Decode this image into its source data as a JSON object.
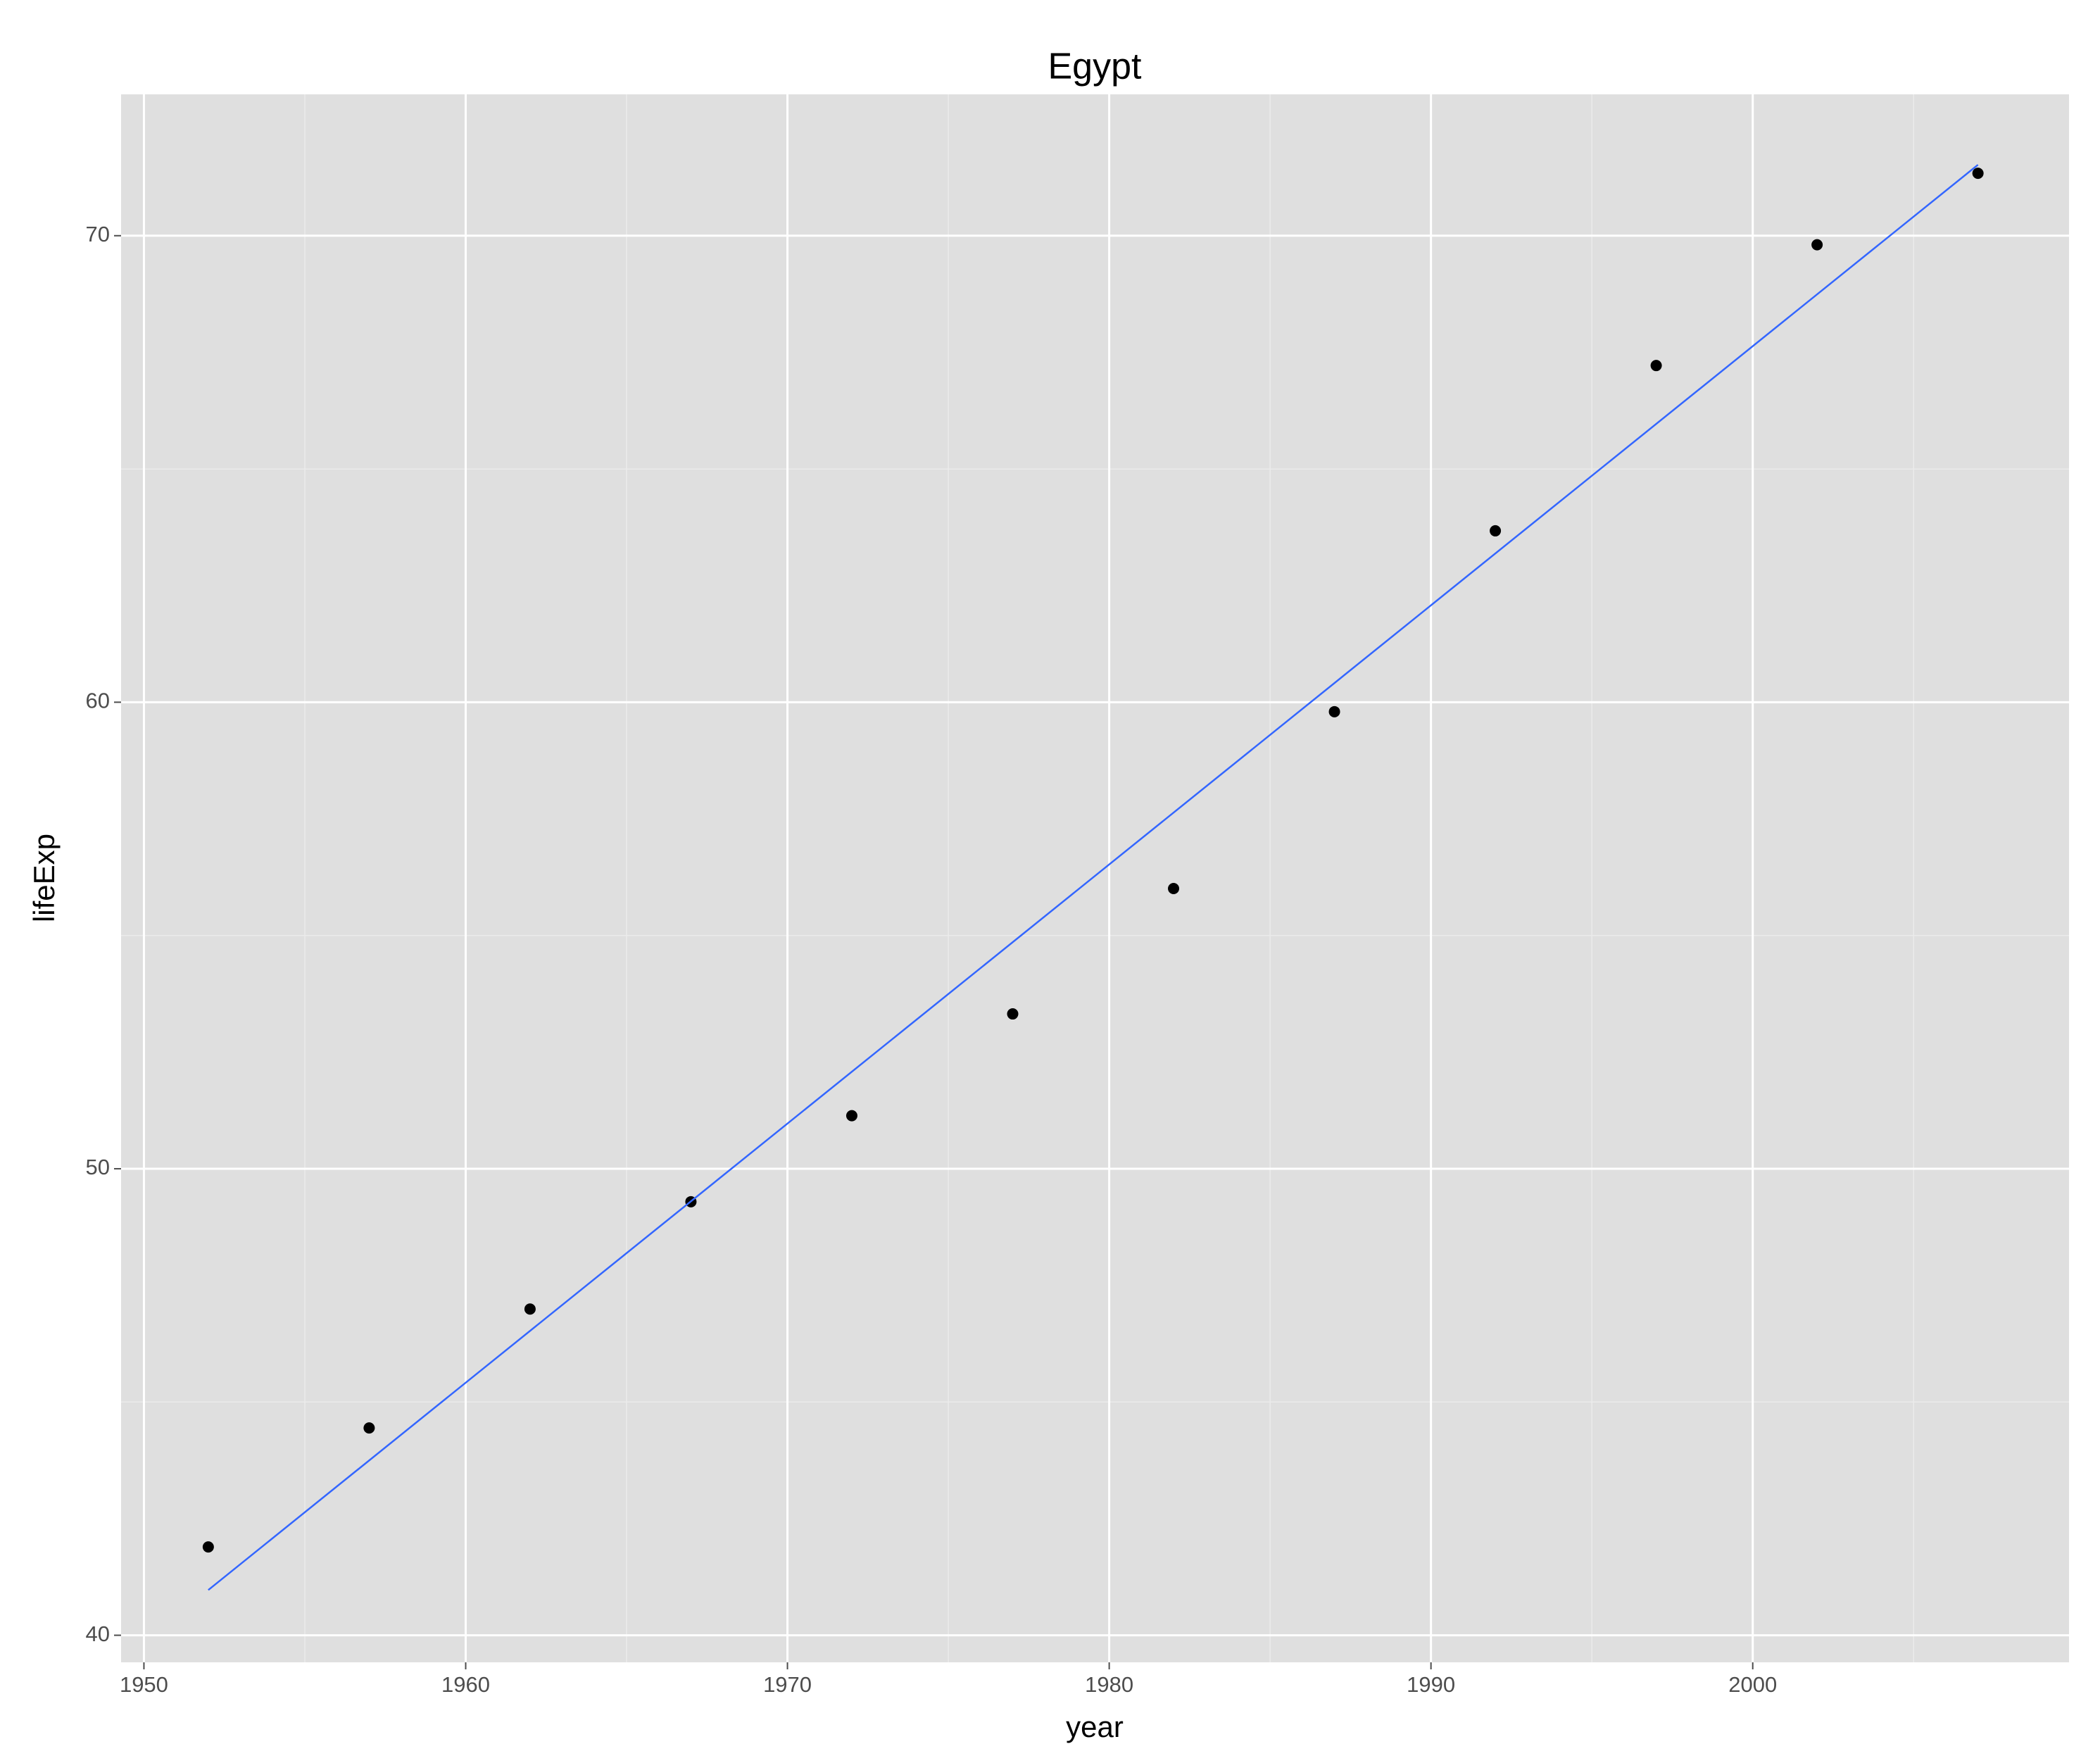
{
  "chart_data": {
    "type": "scatter",
    "title": "Egypt",
    "x_label": "year",
    "y_label": "lifeExp",
    "x": [
      1952,
      1957,
      1962,
      1967,
      1972,
      1977,
      1982,
      1987,
      1992,
      1997,
      2002,
      2007
    ],
    "values": [
      41.893,
      44.444,
      46.992,
      49.293,
      51.137,
      53.319,
      56.006,
      59.797,
      63.674,
      67.217,
      69.806,
      71.338
    ],
    "color": "#000000",
    "fit_line": {
      "x": [
        1952,
        2007
      ],
      "values": [
        40.97,
        71.52
      ],
      "color": "#3366ff"
    },
    "xlim": [
      1949.29,
      2009.83
    ],
    "xticks": [
      1950,
      1960,
      1970,
      1980,
      1990,
      2000
    ],
    "ylim": [
      39.42,
      73.03
    ],
    "yticks": [
      40,
      50,
      60,
      70
    ],
    "grid": true
  }
}
